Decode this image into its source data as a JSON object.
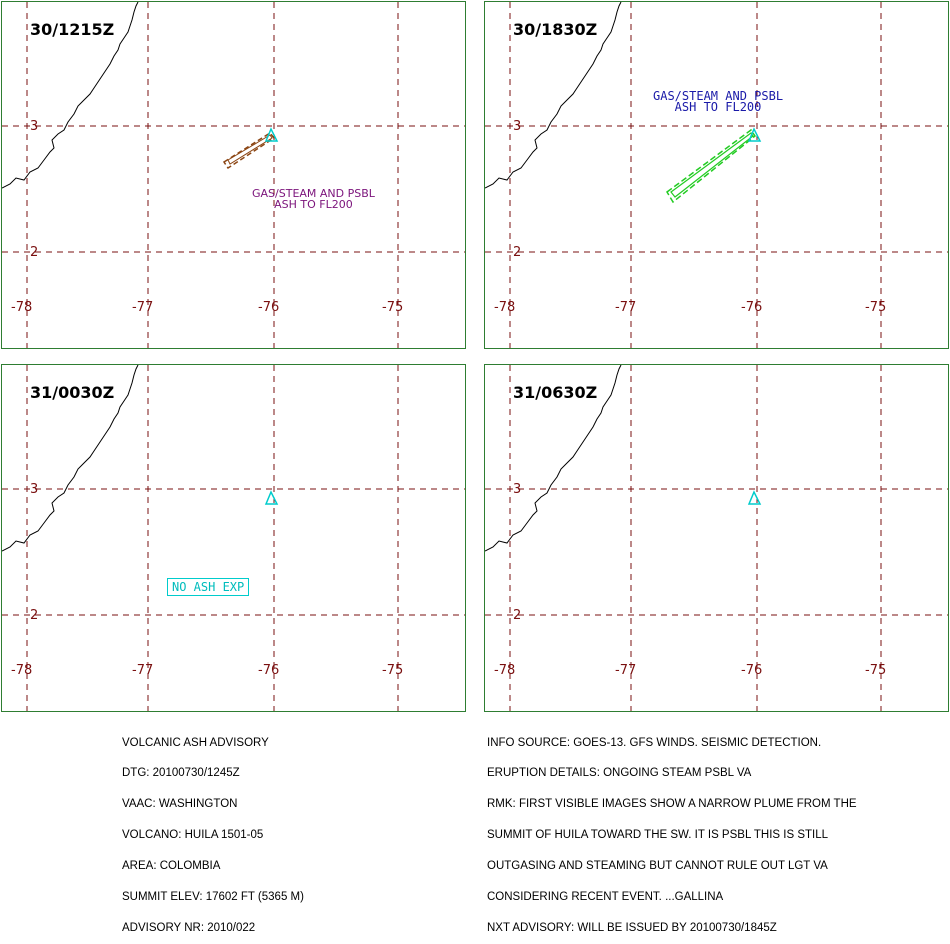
{
  "panels": [
    {
      "time": "30/1215Z",
      "note": [
        "GAS/STEAM AND PSBL",
        "ASH TO FL200"
      ],
      "note_color": "#7b137b"
    },
    {
      "time": "30/1830Z",
      "note": [
        "GAS/STEAM AND PSBL",
        "ASH TO FL200"
      ],
      "note_color": "#1a1aa8"
    },
    {
      "time": "31/0030Z",
      "note": [
        "NO ASH EXP"
      ],
      "note_color": "#00bcbc"
    },
    {
      "time": "31/0630Z",
      "note": [],
      "note_color": ""
    }
  ],
  "axes": {
    "lon_labels": [
      "-78",
      "-77",
      "-76",
      "-75"
    ],
    "lat_labels": [
      "3",
      "2"
    ]
  },
  "colors": {
    "grid": "#7a1010",
    "coast": "#000000",
    "volcano": "#00cccc",
    "plume_1215": "#8b4513",
    "plume_1830": "#22cc22",
    "border": "#2e7d32"
  },
  "advisory_left": [
    "VOLCANIC ASH ADVISORY",
    "DTG: 20100730/1245Z",
    "VAAC: WASHINGTON",
    "VOLCANO: HUILA 1501-05",
    "AREA: COLOMBIA",
    "SUMMIT ELEV: 17602 FT (5365 M)",
    "ADVISORY NR: 2010/022"
  ],
  "advisory_right": [
    "INFO SOURCE: GOES-13. GFS WINDS. SEISMIC DETECTION.",
    "ERUPTION DETAILS: ONGOING STEAM PSBL VA",
    "RMK: FIRST VISIBLE IMAGES SHOW A NARROW PLUME FROM THE",
    "SUMMIT OF HUILA TOWARD THE SW. IT IS PSBL THIS IS STILL",
    "OUTGASING AND STEAMING BUT CANNOT RULE OUT LGT VA",
    "CONSIDERING RECENT EVENT. ...GALLINA",
    "NXT ADVISORY: WILL BE ISSUED BY 20100730/1845Z"
  ]
}
